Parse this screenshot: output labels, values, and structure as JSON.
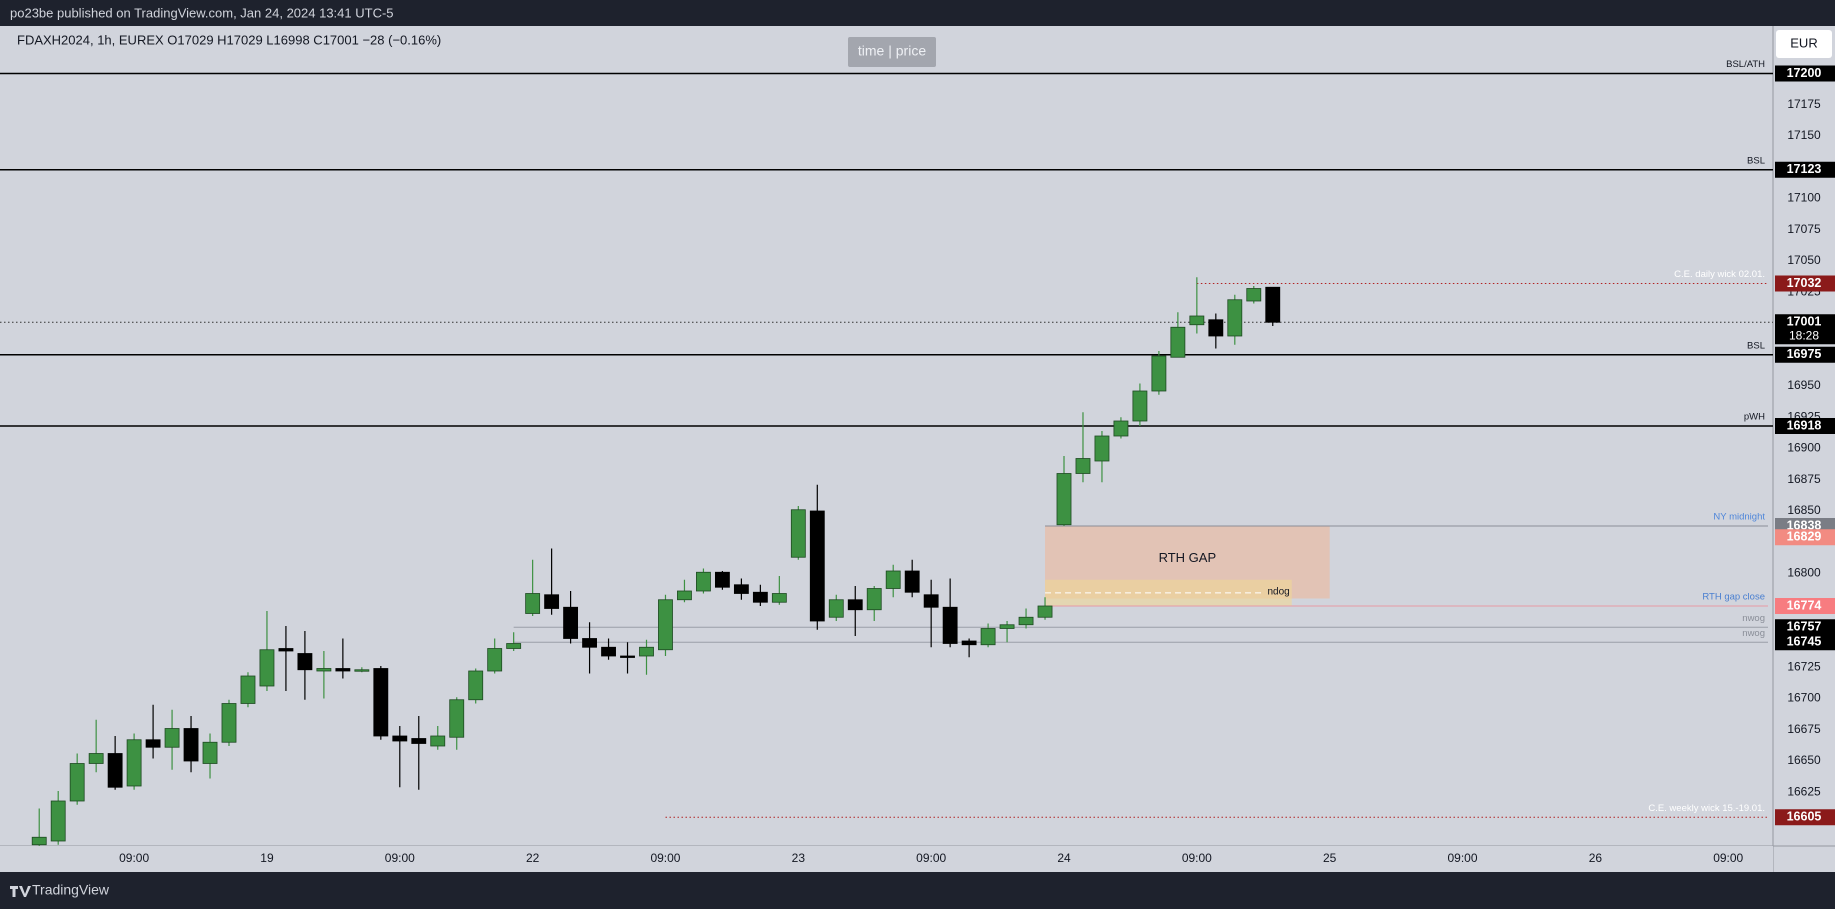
{
  "chart_data": {
    "type": "candlestick",
    "header": "po23be published on TradingView.com, Jan 24, 2024 13:41 UTC-5",
    "legend": "FDAXH2024, 1h, EUREX  O17029  H17029  L16998  C17001  −28 (−0.16%)",
    "button": "time | price",
    "currency": "EUR",
    "footer": "TradingView",
    "countdown": "18:28",
    "up_color": "#3d9142",
    "down_color": "#000000",
    "open": [
      16583,
      16586,
      16618,
      16648,
      16656,
      16630,
      16667,
      16661,
      16676,
      16648,
      16665,
      16696,
      16710,
      16740,
      16736,
      16722,
      16724,
      16722,
      16724,
      16670,
      16668,
      16662,
      16669,
      16699,
      16722,
      16740,
      16768,
      16783,
      16773,
      16748,
      16741,
      16734,
      16734,
      16739,
      16779,
      16786,
      16801,
      16791,
      16785,
      16777,
      16813,
      16850,
      16765,
      16779,
      16771,
      16788,
      16802,
      16783,
      16773,
      16746,
      16743,
      16756,
      16759,
      16765,
      16839,
      16880,
      16890,
      16910,
      16922,
      16946,
      16973,
      16999,
      17003,
      16990,
      17018,
      17029
    ],
    "high": [
      16612,
      16626,
      16656,
      16683,
      16670,
      16672,
      16695,
      16691,
      16686,
      16672,
      16699,
      16721,
      16770,
      16758,
      16754,
      16738,
      16748,
      16725,
      16726,
      16678,
      16686,
      16678,
      16701,
      16724,
      16748,
      16753,
      16811,
      16820,
      16786,
      16761,
      16748,
      16745,
      16747,
      16783,
      16795,
      16804,
      16802,
      16796,
      16791,
      16798,
      16854,
      16871,
      16783,
      16790,
      16790,
      16807,
      16811,
      16795,
      16796,
      16748,
      16760,
      16762,
      16772,
      16781,
      16894,
      16929,
      16914,
      16925,
      16952,
      16978,
      17009,
      17037,
      17008,
      17023,
      17030,
      17029
    ],
    "low": [
      16582,
      16583,
      16615,
      16641,
      16627,
      16627,
      16652,
      16643,
      16641,
      16636,
      16662,
      16693,
      16706,
      16706,
      16699,
      16700,
      16716,
      16721,
      16667,
      16629,
      16627,
      16659,
      16659,
      16696,
      16720,
      16738,
      16766,
      16767,
      16744,
      16720,
      16731,
      16720,
      16719,
      16734,
      16777,
      16784,
      16787,
      16779,
      16774,
      16775,
      16811,
      16755,
      16762,
      16750,
      16762,
      16781,
      16781,
      16741,
      16741,
      16733,
      16741,
      16745,
      16756,
      16763,
      16838,
      16873,
      16873,
      16908,
      16918,
      16943,
      16973,
      16992,
      16980,
      16983,
      17016,
      16998
    ],
    "close": [
      16589,
      16618,
      16648,
      16656,
      16629,
      16667,
      16661,
      16676,
      16650,
      16665,
      16696,
      16718,
      16739,
      16738,
      16723,
      16724,
      16722,
      16723,
      16670,
      16666,
      16664,
      16670,
      16699,
      16722,
      16740,
      16744,
      16784,
      16772,
      16748,
      16741,
      16734,
      16733,
      16741,
      16779,
      16786,
      16801,
      16789,
      16784,
      16777,
      16784,
      16851,
      16762,
      16779,
      16771,
      16788,
      16802,
      16785,
      16773,
      16744,
      16743,
      16756,
      16759,
      16765,
      16774,
      16880,
      16892,
      16910,
      16922,
      16946,
      16974,
      16997,
      17006,
      16990,
      17019,
      17028,
      17001
    ],
    "xlim": [
      -1.54,
      91.36
    ],
    "xticks": [
      {
        "value": 5,
        "label": "09:00"
      },
      {
        "value": 12,
        "label": "19"
      },
      {
        "value": 19,
        "label": "09:00"
      },
      {
        "value": 26,
        "label": "22"
      },
      {
        "value": 33,
        "label": "09:00"
      },
      {
        "value": 40,
        "label": "23"
      },
      {
        "value": 47,
        "label": "09:00"
      },
      {
        "value": 54,
        "label": "24"
      },
      {
        "value": 61,
        "label": "09:00"
      },
      {
        "value": 68,
        "label": "25"
      },
      {
        "value": 75,
        "label": "09:00"
      },
      {
        "value": 82,
        "label": "26"
      },
      {
        "value": 89,
        "label": "09:00"
      }
    ],
    "ylim": [
      16582,
      17238
    ],
    "yticks": [
      16625,
      16650,
      16675,
      16700,
      16725,
      16800,
      16850,
      16875,
      16900,
      16925,
      16950,
      17025,
      17050,
      17075,
      17100,
      17150,
      17175
    ],
    "levels": [
      {
        "value": 17200,
        "label": "BSL/ATH",
        "color": "#000000",
        "style": "solid",
        "axis_color": "#000000",
        "label_color": "#131722"
      },
      {
        "value": 17123,
        "label": "BSL",
        "color": "#000000",
        "style": "solid",
        "axis_color": "#000000",
        "label_color": "#131722"
      },
      {
        "value": 17032,
        "label": "C.E. daily wick 02.01.",
        "color": "#b22222",
        "style": "dotted",
        "axis_color": "#8b1a1a",
        "label_color": "#ffffff",
        "from": 61
      },
      {
        "value": 17001,
        "color": "#333333",
        "style": "dotted",
        "axis_color": "#000000"
      },
      {
        "value": 16975,
        "label": "BSL",
        "color": "#000000",
        "style": "solid",
        "axis_color": "#000000",
        "label_color": "#131722"
      },
      {
        "value": 16918,
        "label": "pWH",
        "color": "#000000",
        "style": "solid",
        "axis_color": "#000000",
        "label_color": "#131722"
      },
      {
        "value": 16838,
        "label": "NY midnight",
        "color": "#8a8e98",
        "style": "solid",
        "axis_color": "#7a7d85",
        "label_color": "#4f86d9",
        "from": 53
      },
      {
        "value": 16829,
        "style": "none",
        "axis_color": "#f28b82"
      },
      {
        "value": 16774,
        "label": "RTH gap close",
        "color": "#e79aa5",
        "style": "solid",
        "axis_color": "#f77c80",
        "label_color": "#4a7fd0",
        "from": 53
      },
      {
        "value": 16757,
        "label": "nwog",
        "color": "#9a9ea8",
        "style": "solid",
        "axis_color": "#000000",
        "label_color": "#8a8e98",
        "from": 25
      },
      {
        "value": 16745,
        "label": "nwog",
        "color": "#9a9ea8",
        "style": "solid",
        "axis_color": "#000000",
        "label_color": "#8a8e98",
        "from": 25
      },
      {
        "value": 16605,
        "label": "C.E. weekly wick 15.-19.01.",
        "color": "#b22222",
        "style": "dotted",
        "axis_color": "#8b1a1a",
        "label_color": "#ffffff",
        "from": 33
      }
    ],
    "zones": [
      {
        "label": "RTH GAP",
        "from": 53,
        "to": 68,
        "top": 16838,
        "bottom": 16780,
        "color": "rgba(240,180,150,0.55)"
      },
      {
        "label": "ndog",
        "from": 53,
        "to": 66,
        "top": 16795,
        "bottom": 16774,
        "color": "rgba(240,215,150,0.6)"
      }
    ]
  }
}
